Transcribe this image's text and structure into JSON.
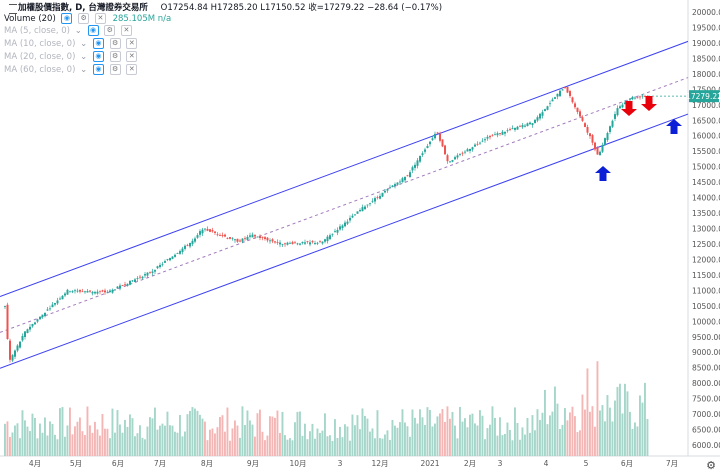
{
  "header": {
    "title": "加權股價指數, D, 台灣證券交易所",
    "ohlc": "O17254.84  H17285.20  L17150.52  收=17279.22  −28.64 (−0.17%)",
    "indicators": [
      {
        "label": "Volume (20)",
        "value": "285.105M  n/a"
      },
      {
        "label": "MA (5, close, 0)",
        "value": ""
      },
      {
        "label": "MA (10, close, 0)",
        "value": ""
      },
      {
        "label": "MA (20, close, 0)",
        "value": ""
      },
      {
        "label": "MA (60, close, 0)",
        "value": ""
      }
    ]
  },
  "price_badge": "17279.22",
  "colors": {
    "up": "#26a69a",
    "down": "#ef5350",
    "vol_up": "#a5d6c9",
    "vol_down": "#f4b6b4",
    "channel": "#3b3ff3",
    "midline": "#a37bbd",
    "arrow_red": "#e8000b",
    "arrow_blue": "#0b1fd6"
  },
  "annotations": {
    "red_arrows": 2,
    "blue_arrows": 2
  },
  "chart_data": {
    "type": "candlestick",
    "title": "加權股價指數",
    "y_axis": {
      "range": [
        5700,
        20200
      ],
      "ticks": [
        20000,
        19500,
        19000,
        18500,
        18000,
        17500,
        17000,
        16500,
        16000,
        15500,
        15000,
        14500,
        14000,
        13500,
        13000,
        12500,
        12000,
        11500,
        11000,
        10500,
        10000,
        9500,
        9000,
        8500,
        8000,
        7500,
        7000,
        6500,
        6000
      ]
    },
    "x_axis_labels": [
      "4月",
      "5月",
      "6月",
      "7月",
      "8月",
      "9月",
      "10月",
      "3",
      "12月",
      "2021",
      "2月",
      "3",
      "4",
      "5",
      "6月",
      "7月"
    ],
    "series_close_approx": [
      {
        "date": "2020-03-16",
        "close": 10500
      },
      {
        "date": "2020-03-19",
        "close": 8700
      },
      {
        "date": "2020-03-31",
        "close": 9700
      },
      {
        "date": "2020-04-30",
        "close": 10990
      },
      {
        "date": "2020-05-29",
        "close": 10940
      },
      {
        "date": "2020-06-30",
        "close": 11620
      },
      {
        "date": "2020-07-31",
        "close": 12660
      },
      {
        "date": "2020-08-05",
        "close": 13000
      },
      {
        "date": "2020-08-31",
        "close": 12590
      },
      {
        "date": "2020-09-10",
        "close": 12780
      },
      {
        "date": "2020-09-30",
        "close": 12520
      },
      {
        "date": "2020-10-30",
        "close": 12550
      },
      {
        "date": "2020-11-30",
        "close": 13720
      },
      {
        "date": "2020-12-31",
        "close": 14730
      },
      {
        "date": "2021-01-21",
        "close": 16150
      },
      {
        "date": "2021-01-29",
        "close": 15140
      },
      {
        "date": "2021-02-26",
        "close": 15950
      },
      {
        "date": "2021-03-31",
        "close": 16430
      },
      {
        "date": "2021-04-23",
        "close": 17600
      },
      {
        "date": "2021-05-12",
        "close": 15900
      },
      {
        "date": "2021-05-17",
        "close": 15350
      },
      {
        "date": "2021-05-31",
        "close": 16900
      },
      {
        "date": "2021-06-11",
        "close": 17250
      },
      {
        "date": "2021-06-22",
        "close": 17279.22
      }
    ],
    "volume_range_approx": "moderate through 2020, higher spikes Apr–Jun 2021"
  }
}
